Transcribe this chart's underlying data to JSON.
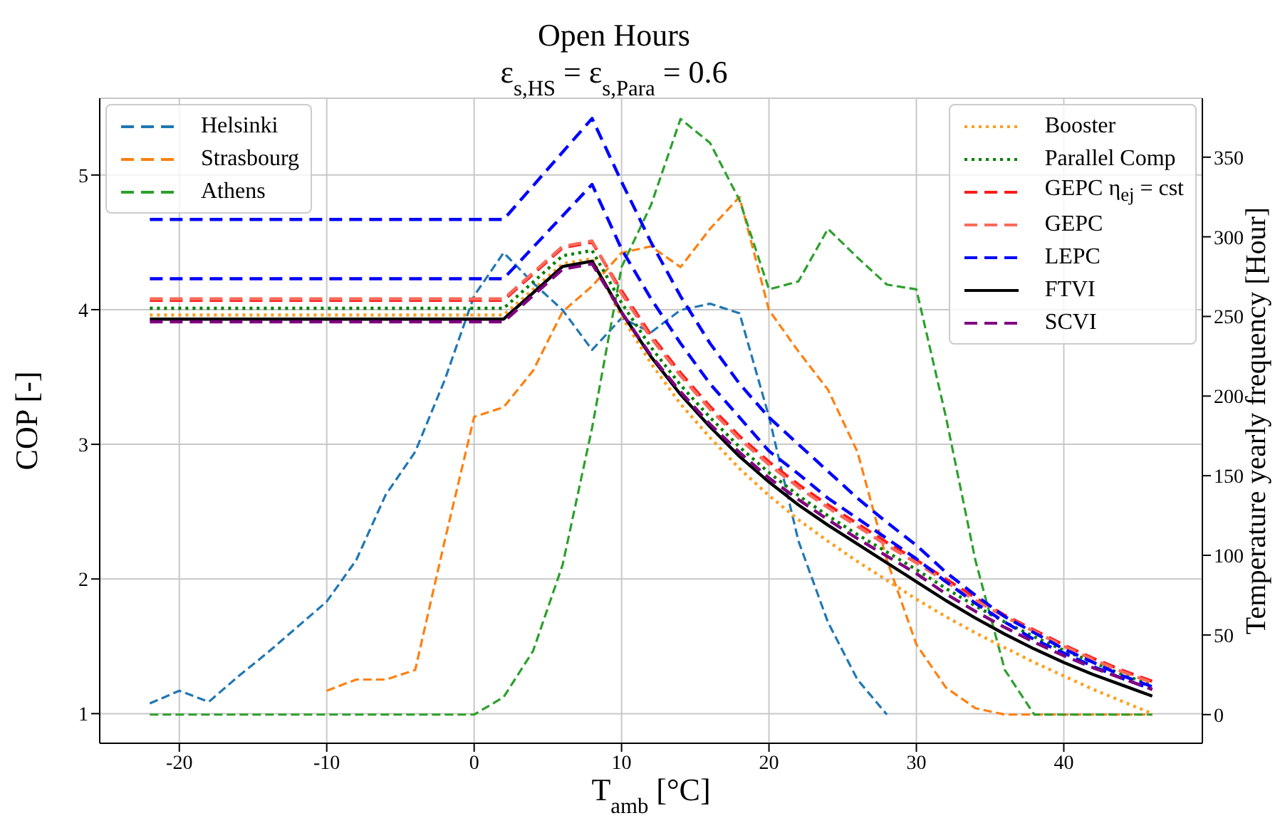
{
  "chart_data": {
    "type": "line",
    "title": "Open Hours",
    "subtitle": "ε$_{s,HS}$ = ε$_{s,Para}$ = 0.6",
    "xlabel": "T$_{amb}$ [°C]",
    "ylabel": "COP [-]",
    "y2label": "Temperature yearly frequency [Hour]",
    "xlim": [
      -25.4,
      49.4
    ],
    "xticks": [
      -20,
      -10,
      0,
      10,
      20,
      30,
      40
    ],
    "ylim": [
      0.78,
      5.57
    ],
    "yticks": [
      1,
      2,
      3,
      4,
      5
    ],
    "y2lim": [
      -18,
      387
    ],
    "y2ticks": [
      0,
      50,
      100,
      150,
      200,
      250,
      300,
      350
    ],
    "grid": true,
    "legend": "top right",
    "series": [
      {
        "name": "Helsinki",
        "color": "#1f77b4",
        "axis": "y2",
        "line_style": "dashed",
        "x": [
          -22,
          -20,
          -18,
          -16,
          -14,
          -12,
          -10,
          -8,
          -6,
          -4,
          -2,
          0,
          2,
          4,
          6,
          8,
          10,
          12,
          14,
          16,
          18,
          20,
          22,
          24,
          26,
          28
        ],
        "values": [
          7,
          15,
          8,
          24,
          39,
          55,
          71,
          97,
          138,
          165,
          210,
          263,
          290,
          271,
          254,
          229,
          249,
          240,
          254,
          258,
          252,
          187,
          109,
          58,
          22,
          0
        ]
      },
      {
        "name": "Strasbourg",
        "color": "#ff7f0e",
        "axis": "y2",
        "line_style": "dashed",
        "x": [
          -10,
          -8,
          -6,
          -4,
          -2,
          0,
          2,
          4,
          6,
          8,
          10,
          12,
          14,
          16,
          18,
          20,
          22,
          24,
          26,
          28,
          30,
          32,
          34,
          36,
          38,
          40,
          42,
          44,
          46
        ],
        "values": [
          15,
          22,
          22,
          28,
          109,
          187,
          193,
          216,
          253,
          269,
          290,
          294,
          281,
          305,
          325,
          254,
          228,
          204,
          165,
          97,
          44,
          17,
          4,
          0,
          0,
          0,
          0,
          0,
          0
        ]
      },
      {
        "name": "Athens",
        "color": "#2ca02c",
        "axis": "y2",
        "line_style": "dashed",
        "x": [
          -22,
          -20,
          -18,
          -16,
          -14,
          -12,
          -10,
          -8,
          -6,
          -4,
          -2,
          0,
          2,
          4,
          6,
          8,
          10,
          12,
          14,
          16,
          18,
          20,
          22,
          24,
          26,
          28,
          30,
          32,
          34,
          36,
          38,
          40,
          42,
          44,
          46
        ],
        "values": [
          0,
          0,
          0,
          0,
          0,
          0,
          0,
          0,
          0,
          0,
          0,
          0,
          11,
          40,
          94,
          180,
          281,
          320,
          374,
          359,
          323,
          267,
          272,
          305,
          287,
          270,
          267,
          187,
          97,
          28,
          0,
          0,
          0,
          0,
          0
        ]
      },
      {
        "name": "Booster",
        "color": "#ff9f1c",
        "line_style": "dotted",
        "x": [
          -22,
          2,
          6,
          8,
          10,
          12,
          14,
          16,
          18,
          20,
          22,
          24,
          26,
          28,
          30,
          32,
          34,
          36,
          38,
          40,
          42,
          44,
          46
        ],
        "values": [
          3.96,
          3.96,
          4.34,
          4.38,
          3.95,
          3.6,
          3.3,
          3.05,
          2.82,
          2.62,
          2.44,
          2.28,
          2.13,
          1.99,
          1.85,
          1.72,
          1.6,
          1.49,
          1.38,
          1.28,
          1.18,
          1.09,
          1.0
        ]
      },
      {
        "name": "Parallel Comp",
        "color": "#008000",
        "line_style": "dotted",
        "x": [
          -22,
          2,
          6,
          8,
          10,
          12,
          14,
          16,
          18,
          20,
          22,
          24,
          26,
          28,
          30,
          32,
          34,
          36,
          38,
          40,
          42,
          44,
          46
        ],
        "values": [
          4.01,
          4.01,
          4.4,
          4.44,
          4.05,
          3.72,
          3.44,
          3.2,
          2.98,
          2.79,
          2.62,
          2.47,
          2.33,
          2.2,
          2.07,
          1.93,
          1.8,
          1.68,
          1.57,
          1.47,
          1.38,
          1.29,
          1.21
        ]
      },
      {
        "name": "GEPC η$_{ej}$ = cst",
        "color": "#ff1a1a",
        "line_style": "dashed",
        "x": [
          -22,
          2,
          6,
          8,
          10,
          12,
          14,
          16,
          18,
          20,
          22,
          24,
          26,
          28,
          30,
          32,
          34,
          36,
          38,
          40,
          42,
          44,
          46
        ],
        "values": [
          4.07,
          4.07,
          4.46,
          4.5,
          4.14,
          3.81,
          3.53,
          3.28,
          3.06,
          2.87,
          2.7,
          2.55,
          2.41,
          2.27,
          2.14,
          2.0,
          1.86,
          1.73,
          1.62,
          1.51,
          1.41,
          1.32,
          1.24
        ]
      },
      {
        "name": "GEPC",
        "color": "#fa6a5a",
        "line_style": "dashed",
        "x": [
          -22,
          2,
          6,
          8,
          10,
          12,
          14,
          16,
          18,
          20,
          22,
          24,
          26,
          28,
          30,
          32,
          34,
          36,
          38,
          40,
          42,
          44,
          46
        ],
        "values": [
          4.08,
          4.08,
          4.47,
          4.51,
          4.12,
          3.79,
          3.51,
          3.26,
          3.04,
          2.85,
          2.68,
          2.53,
          2.39,
          2.25,
          2.12,
          1.98,
          1.84,
          1.72,
          1.61,
          1.5,
          1.4,
          1.31,
          1.23
        ]
      },
      {
        "name": "LEPC",
        "color": "#0000ff",
        "line_style": "dashed",
        "x": [
          -22,
          2,
          8,
          10,
          12,
          14,
          16,
          18,
          20,
          22,
          24,
          26,
          28,
          30,
          32,
          34,
          36,
          38,
          40,
          42,
          44,
          46
        ],
        "values": [
          4.23,
          4.23,
          4.93,
          4.45,
          4.08,
          3.75,
          3.45,
          3.2,
          2.95,
          2.78,
          2.6,
          2.45,
          2.3,
          2.15,
          1.98,
          1.82,
          1.68,
          1.55,
          1.45,
          1.35,
          1.26,
          1.18
        ]
      },
      {
        "color": "#0000ff",
        "line_style": "dashed",
        "x": [
          -22,
          2,
          8,
          10,
          12,
          14,
          16,
          18,
          20,
          22,
          24,
          26,
          28,
          30,
          32,
          34,
          36,
          38,
          40,
          42,
          44,
          46
        ],
        "values": [
          4.67,
          4.67,
          5.42,
          4.95,
          4.5,
          4.1,
          3.75,
          3.45,
          3.2,
          3.0,
          2.8,
          2.6,
          2.42,
          2.25,
          2.05,
          1.88,
          1.72,
          1.6,
          1.48,
          1.38,
          1.28,
          1.2
        ]
      },
      {
        "name": "FTVI",
        "color": "#000000",
        "line_style": "solid",
        "x": [
          -22,
          2,
          6,
          8,
          10,
          12,
          14,
          16,
          18,
          20,
          22,
          24,
          26,
          28,
          30,
          32,
          34,
          36,
          38,
          40,
          42,
          44,
          46
        ],
        "values": [
          3.93,
          3.93,
          4.32,
          4.36,
          3.98,
          3.65,
          3.37,
          3.13,
          2.91,
          2.72,
          2.55,
          2.4,
          2.26,
          2.12,
          1.98,
          1.84,
          1.71,
          1.59,
          1.48,
          1.38,
          1.29,
          1.21,
          1.13
        ]
      },
      {
        "name": "SCVI",
        "color": "#7f007f",
        "line_style": "dashed",
        "x": [
          -22,
          2,
          6,
          8,
          10,
          12,
          14,
          16,
          18,
          20,
          22,
          24,
          26,
          28,
          30,
          32,
          34,
          36,
          38,
          40,
          42,
          44,
          46
        ],
        "values": [
          3.91,
          3.91,
          4.3,
          4.34,
          3.98,
          3.66,
          3.39,
          3.15,
          2.94,
          2.75,
          2.59,
          2.44,
          2.3,
          2.17,
          2.04,
          1.89,
          1.76,
          1.64,
          1.53,
          1.43,
          1.34,
          1.26,
          1.18
        ]
      }
    ]
  }
}
